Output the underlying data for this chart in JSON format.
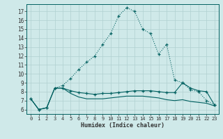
{
  "xlabel": "Humidex (Indice chaleur)",
  "background_color": "#cfe9e9",
  "grid_color": "#b0d0d0",
  "line_color": "#006060",
  "xlim": [
    -0.5,
    23.5
  ],
  "ylim": [
    5.5,
    17.8
  ],
  "x_ticks": [
    0,
    1,
    2,
    3,
    4,
    5,
    6,
    7,
    8,
    9,
    10,
    11,
    12,
    13,
    14,
    15,
    16,
    17,
    18,
    19,
    20,
    21,
    22,
    23
  ],
  "y_ticks": [
    6,
    7,
    8,
    9,
    10,
    11,
    12,
    13,
    14,
    15,
    16,
    17
  ],
  "series_main": {
    "x": [
      0,
      1,
      2,
      3,
      4,
      5,
      6,
      7,
      8,
      9,
      10,
      11,
      12,
      13,
      14,
      15,
      16,
      17,
      18,
      19,
      20,
      21,
      22,
      23
    ],
    "y": [
      7.2,
      6.0,
      6.2,
      8.4,
      8.7,
      9.5,
      10.5,
      11.3,
      12.0,
      13.3,
      14.5,
      16.5,
      17.4,
      17.0,
      15.0,
      14.5,
      12.2,
      13.3,
      9.3,
      9.0,
      8.2,
      8.0,
      7.0,
      6.5
    ]
  },
  "series_upper_flat": {
    "x": [
      0,
      1,
      2,
      3,
      4,
      5,
      6,
      7,
      8,
      9,
      10,
      11,
      12,
      13,
      14,
      15,
      16,
      17,
      18,
      19,
      20,
      21,
      22,
      23
    ],
    "y": [
      7.2,
      6.0,
      6.2,
      8.4,
      8.4,
      8.1,
      7.9,
      7.8,
      7.7,
      7.8,
      7.8,
      7.9,
      8.0,
      8.1,
      8.1,
      8.1,
      8.0,
      7.9,
      7.9,
      9.0,
      8.4,
      8.1,
      8.0,
      6.5
    ]
  },
  "series_lower_flat": {
    "x": [
      0,
      1,
      2,
      3,
      4,
      5,
      6,
      7,
      8,
      9,
      10,
      11,
      12,
      13,
      14,
      15,
      16,
      17,
      18,
      19,
      20,
      21,
      22,
      23
    ],
    "y": [
      7.2,
      6.0,
      6.2,
      8.4,
      8.4,
      7.8,
      7.4,
      7.2,
      7.2,
      7.2,
      7.3,
      7.4,
      7.5,
      7.5,
      7.5,
      7.4,
      7.3,
      7.1,
      7.0,
      7.1,
      6.9,
      6.8,
      6.7,
      6.4
    ]
  }
}
